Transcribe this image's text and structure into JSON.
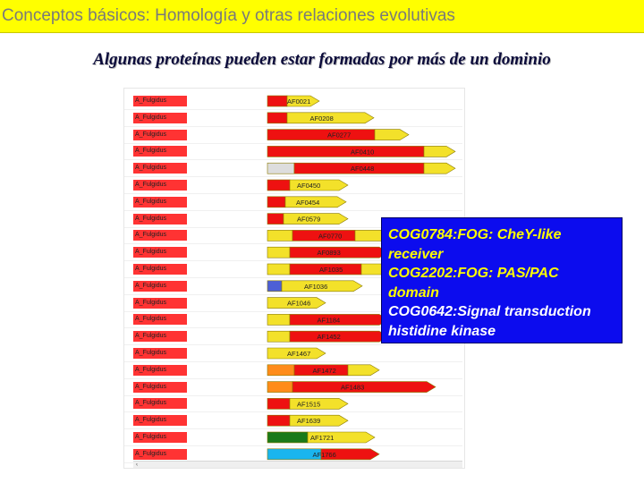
{
  "title": "Conceptos básicos: Homología y otras relaciones evolutivas",
  "subtitle": "Algunas proteínas pueden estar formadas por más de un dominio",
  "rows": [
    {
      "organism": "A_Fulgidus",
      "id": "AF0021",
      "segments": [
        {
          "color": "#ee1111",
          "len": 22
        },
        {
          "color": "#f3e12a",
          "len": 26
        }
      ]
    },
    {
      "organism": "A_Fulgidus",
      "id": "AF0208",
      "segments": [
        {
          "color": "#ee1111",
          "len": 22
        },
        {
          "color": "#f3e12a",
          "len": 87
        }
      ]
    },
    {
      "organism": "A_Fulgidus",
      "id": "AF0277",
      "segments": [
        {
          "color": "#ee1111",
          "len": 120
        },
        {
          "color": "#f3e12a",
          "len": 28
        }
      ]
    },
    {
      "organism": "A_Fulgidus",
      "id": "AF0410",
      "segments": [
        {
          "color": "#ee1111",
          "len": 175
        },
        {
          "color": "#f3e12a",
          "len": 25
        }
      ]
    },
    {
      "organism": "A_Fulgidus",
      "id": "AF0448",
      "segments": [
        {
          "color": "#dddddd",
          "len": 30
        },
        {
          "color": "#ee1111",
          "len": 145
        },
        {
          "color": "#f3e12a",
          "len": 25
        }
      ]
    },
    {
      "organism": "A_Fulgidus",
      "id": "AF0450",
      "segments": [
        {
          "color": "#ee1111",
          "len": 25
        },
        {
          "color": "#f3e12a",
          "len": 55
        }
      ]
    },
    {
      "organism": "A_Fulgidus",
      "id": "AF0454",
      "segments": [
        {
          "color": "#ee1111",
          "len": 20
        },
        {
          "color": "#f3e12a",
          "len": 58
        }
      ]
    },
    {
      "organism": "A_Fulgidus",
      "id": "AF0579",
      "segments": [
        {
          "color": "#ee1111",
          "len": 18
        },
        {
          "color": "#f3e12a",
          "len": 62
        }
      ]
    },
    {
      "organism": "A_Fulgidus",
      "id": "AF0770",
      "segments": [
        {
          "color": "#f3e12a",
          "len": 28
        },
        {
          "color": "#ee1111",
          "len": 70
        },
        {
          "color": "#f3e12a",
          "len": 30
        }
      ]
    },
    {
      "organism": "A_Fulgidus",
      "id": "AF0893",
      "segments": [
        {
          "color": "#f3e12a",
          "len": 25
        },
        {
          "color": "#ee1111",
          "len": 100
        }
      ]
    },
    {
      "organism": "A_Fulgidus",
      "id": "AF1035",
      "segments": [
        {
          "color": "#f3e12a",
          "len": 25
        },
        {
          "color": "#ee1111",
          "len": 80
        },
        {
          "color": "#f3e12a",
          "len": 25
        }
      ]
    },
    {
      "organism": "A_Fulgidus",
      "id": "AF1036",
      "segments": [
        {
          "color": "#4d5fd6",
          "len": 16
        },
        {
          "color": "#f3e12a",
          "len": 80
        }
      ]
    },
    {
      "organism": "A_Fulgidus",
      "id": "AF1046",
      "segments": [
        {
          "color": "#f3e12a",
          "len": 55
        }
      ]
    },
    {
      "organism": "A_Fulgidus",
      "id": "AF1184",
      "segments": [
        {
          "color": "#f3e12a",
          "len": 25
        },
        {
          "color": "#ee1111",
          "len": 100
        }
      ]
    },
    {
      "organism": "A_Fulgidus",
      "id": "AF1452",
      "segments": [
        {
          "color": "#f3e12a",
          "len": 25
        },
        {
          "color": "#ee1111",
          "len": 100
        }
      ]
    },
    {
      "organism": "A_Fulgidus",
      "id": "AF1467",
      "segments": [
        {
          "color": "#f3e12a",
          "len": 55
        }
      ]
    },
    {
      "organism": "A_Fulgidus",
      "id": "AF1472",
      "segments": [
        {
          "color": "#ff8c1a",
          "len": 30
        },
        {
          "color": "#ee1111",
          "len": 60
        },
        {
          "color": "#f3e12a",
          "len": 25
        }
      ]
    },
    {
      "organism": "A_Fulgidus",
      "id": "AF1483",
      "segments": [
        {
          "color": "#ff8c1a",
          "len": 28
        },
        {
          "color": "#ee1111",
          "len": 150
        }
      ]
    },
    {
      "organism": "A_Fulgidus",
      "id": "AF1515",
      "segments": [
        {
          "color": "#ee1111",
          "len": 25
        },
        {
          "color": "#f3e12a",
          "len": 55
        }
      ]
    },
    {
      "organism": "A_Fulgidus",
      "id": "AF1639",
      "segments": [
        {
          "color": "#ee1111",
          "len": 25
        },
        {
          "color": "#f3e12a",
          "len": 55
        }
      ]
    },
    {
      "organism": "A_Fulgidus",
      "id": "AF1721",
      "segments": [
        {
          "color": "#1a7a1a",
          "len": 45
        },
        {
          "color": "#f3e12a",
          "len": 65
        }
      ]
    },
    {
      "organism": "A_Fulgidus",
      "id": "AF1766",
      "segments": [
        {
          "color": "#1ab5ee",
          "len": 60
        },
        {
          "color": "#ee1111",
          "len": 55
        }
      ]
    }
  ],
  "callout": {
    "line1": "COG0784:FOG: CheY-like",
    "line2": "receiver",
    "line3": "COG2202:FOG: PAS/PAC",
    "line4": "domain",
    "line5": "COG0642:Signal transduction",
    "line6": "histidine kinase"
  },
  "scroll_left_glyph": "‹"
}
